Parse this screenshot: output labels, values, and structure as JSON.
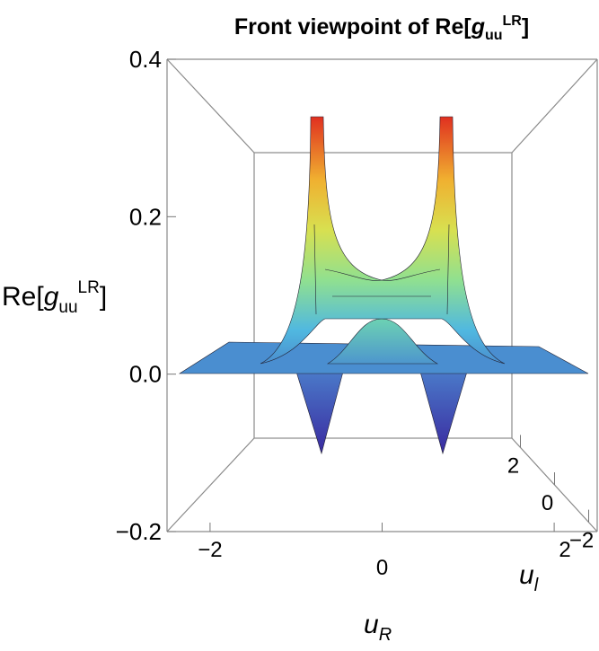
{
  "chart_data": {
    "type": "surface",
    "title": {
      "prefix": "Front viewpoint of Re[",
      "symbol": "g",
      "sub": "uu",
      "sup": "LR",
      "suffix": "]"
    },
    "zlabel": {
      "prefix": "Re[",
      "symbol": "g",
      "sub": "uu",
      "sup": "LR",
      "suffix": "]"
    },
    "xlabel": {
      "symbol": "u",
      "sub": "R"
    },
    "ylabel": {
      "symbol": "u",
      "sub": "l"
    },
    "xlim": [
      -2.5,
      2.5
    ],
    "xticks": [
      {
        "value": -2,
        "label": "−2"
      },
      0,
      2
    ],
    "ylim": [
      -2.5,
      2.5
    ],
    "yticks": [
      {
        "value": -2,
        "label": "−2"
      },
      0,
      2
    ],
    "zlim": [
      -0.2,
      0.4
    ],
    "zticks": [
      {
        "value": -0.2,
        "label": "−0.2"
      },
      {
        "value": 0,
        "label": "0.0"
      },
      0.2,
      0.4
    ]
  }
}
